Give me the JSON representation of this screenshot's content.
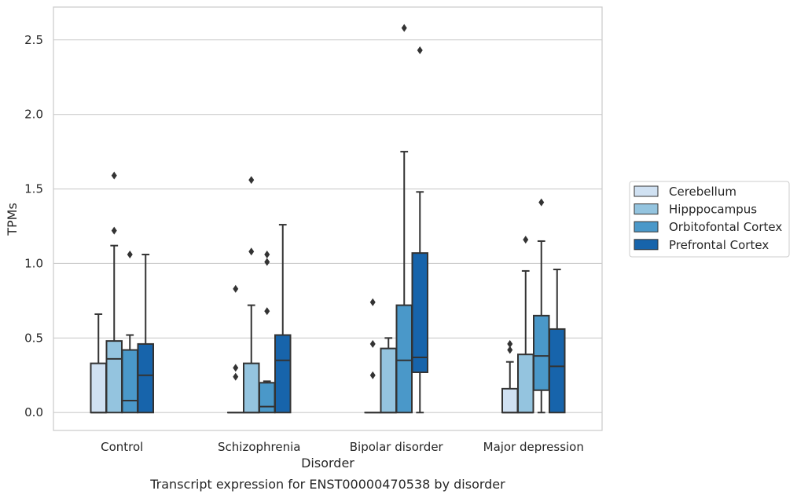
{
  "chart_data": {
    "type": "box",
    "xlabel": "Disorder",
    "ylabel": "TPMs",
    "caption": "Transcript expression for ENST00000470538 by disorder",
    "ylim": [
      -0.12,
      2.72
    ],
    "yticks": [
      "0.0",
      "0.5",
      "1.0",
      "1.5",
      "2.0",
      "2.5"
    ],
    "grid": "horizontal",
    "legend_position": "right",
    "categories": [
      "Control",
      "Schizophrenia",
      "Bipolar disorder",
      "Major depression"
    ],
    "series": [
      {
        "name": "Cerebellum",
        "color": "#d0e1f2",
        "boxes": [
          {
            "whisker_low": 0.0,
            "q1": 0.0,
            "median": 0.0,
            "q3": 0.33,
            "whisker_high": 0.66,
            "outliers": []
          },
          {
            "whisker_low": 0.0,
            "q1": 0.0,
            "median": 0.0,
            "q3": 0.0,
            "whisker_high": 0.0,
            "outliers": [
              0.24,
              0.3,
              0.83
            ]
          },
          {
            "whisker_low": 0.0,
            "q1": 0.0,
            "median": 0.0,
            "q3": 0.0,
            "whisker_high": 0.0,
            "outliers": [
              0.25,
              0.46,
              0.74
            ]
          },
          {
            "whisker_low": 0.0,
            "q1": 0.0,
            "median": 0.0,
            "q3": 0.16,
            "whisker_high": 0.34,
            "outliers": [
              0.42,
              0.46
            ]
          }
        ]
      },
      {
        "name": "Hipppocampus",
        "color": "#94c4df",
        "boxes": [
          {
            "whisker_low": 0.0,
            "q1": 0.0,
            "median": 0.36,
            "q3": 0.48,
            "whisker_high": 1.12,
            "outliers": [
              1.22,
              1.59
            ]
          },
          {
            "whisker_low": 0.0,
            "q1": 0.0,
            "median": 0.0,
            "q3": 0.33,
            "whisker_high": 0.72,
            "outliers": [
              1.08,
              1.56
            ]
          },
          {
            "whisker_low": 0.0,
            "q1": 0.0,
            "median": 0.0,
            "q3": 0.43,
            "whisker_high": 0.5,
            "outliers": []
          },
          {
            "whisker_low": 0.0,
            "q1": 0.0,
            "median": 0.0,
            "q3": 0.39,
            "whisker_high": 0.95,
            "outliers": [
              1.16
            ]
          }
        ]
      },
      {
        "name": "Orbitofontal Cortex",
        "color": "#4a98c9",
        "boxes": [
          {
            "whisker_low": 0.0,
            "q1": 0.0,
            "median": 0.08,
            "q3": 0.42,
            "whisker_high": 0.52,
            "outliers": [
              1.06
            ]
          },
          {
            "whisker_low": 0.0,
            "q1": 0.0,
            "median": 0.04,
            "q3": 0.2,
            "whisker_high": 0.21,
            "outliers": [
              0.68,
              1.01,
              1.06
            ]
          },
          {
            "whisker_low": 0.0,
            "q1": 0.0,
            "median": 0.35,
            "q3": 0.72,
            "whisker_high": 1.75,
            "outliers": [
              2.58
            ]
          },
          {
            "whisker_low": 0.0,
            "q1": 0.15,
            "median": 0.38,
            "q3": 0.65,
            "whisker_high": 1.15,
            "outliers": [
              1.41
            ]
          }
        ]
      },
      {
        "name": "Prefrontal Cortex",
        "color": "#1764ab",
        "boxes": [
          {
            "whisker_low": 0.0,
            "q1": 0.0,
            "median": 0.25,
            "q3": 0.46,
            "whisker_high": 1.06,
            "outliers": []
          },
          {
            "whisker_low": 0.0,
            "q1": 0.0,
            "median": 0.35,
            "q3": 0.52,
            "whisker_high": 1.26,
            "outliers": []
          },
          {
            "whisker_low": 0.0,
            "q1": 0.27,
            "median": 0.37,
            "q3": 1.07,
            "whisker_high": 1.48,
            "outliers": [
              2.43
            ]
          },
          {
            "whisker_low": 0.0,
            "q1": 0.0,
            "median": 0.31,
            "q3": 0.56,
            "whisker_high": 0.96,
            "outliers": []
          }
        ]
      }
    ]
  }
}
